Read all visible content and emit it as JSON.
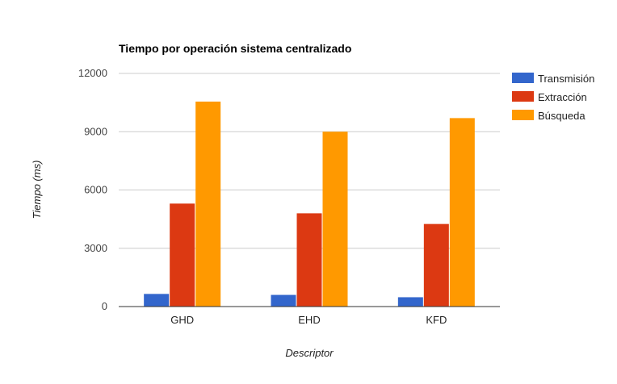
{
  "chart_data": {
    "type": "bar",
    "title": "Tiempo por operación sistema centralizado",
    "xlabel": "Descriptor",
    "ylabel": "Tiempo (ms)",
    "ylim": [
      0,
      12000
    ],
    "yticks": [
      0,
      3000,
      6000,
      9000,
      12000
    ],
    "grid": true,
    "legend_position": "right",
    "categories": [
      "GHD",
      "EHD",
      "KFD"
    ],
    "series": [
      {
        "name": "Transmisión",
        "color": "#3366cc",
        "values": [
          650,
          600,
          480
        ]
      },
      {
        "name": "Extracción",
        "color": "#dc3912",
        "values": [
          5300,
          4800,
          4250
        ]
      },
      {
        "name": "Búsqueda",
        "color": "#ff9900",
        "values": [
          10550,
          9000,
          9700
        ]
      }
    ]
  }
}
